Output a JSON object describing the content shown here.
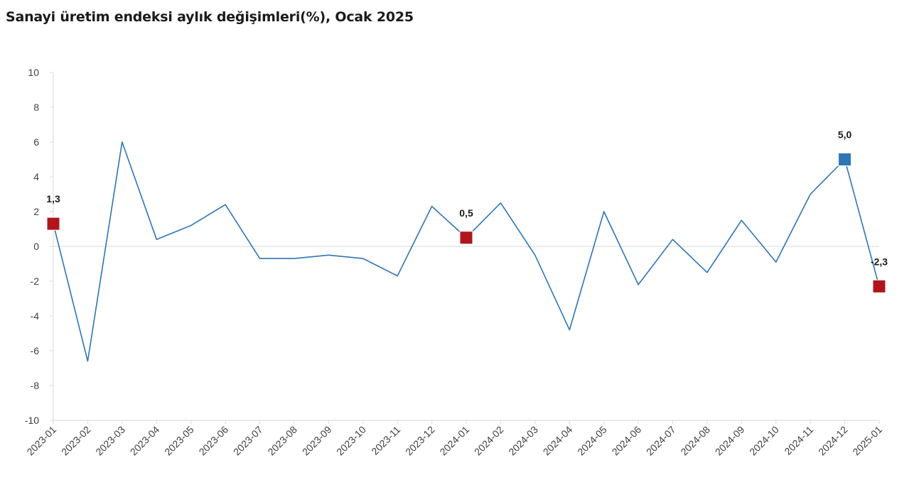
{
  "chart_data": {
    "type": "line",
    "title": "Sanayi üretim endeksi aylık değişimleri(%), Ocak 2025",
    "xlabel": "",
    "ylabel": "",
    "ylim": [
      -10,
      10
    ],
    "yticks": [
      10,
      8,
      6,
      4,
      2,
      0,
      -2,
      -4,
      -6,
      -8,
      -10
    ],
    "grid": false,
    "legend": "none",
    "categories": [
      "2023-01",
      "2023-02",
      "2023-03",
      "2023-04",
      "2023-05",
      "2023-06",
      "2023-07",
      "2023-08",
      "2023-09",
      "2023-10",
      "2023-11",
      "2023-12",
      "2024-01",
      "2024-02",
      "2024-03",
      "2024-04",
      "2024-05",
      "2024-06",
      "2024-07",
      "2024-08",
      "2024-09",
      "2024-10",
      "2024-11",
      "2024-12",
      "2025-01"
    ],
    "series": [
      {
        "values": [
          1.3,
          -6.6,
          6.0,
          0.4,
          1.2,
          2.4,
          -0.7,
          -0.7,
          -0.5,
          -0.7,
          -1.7,
          2.3,
          0.5,
          2.5,
          -0.5,
          -4.8,
          2.0,
          -2.2,
          0.4,
          -1.5,
          1.5,
          -0.9,
          3.0,
          5.0,
          -2.3
        ],
        "color": "#2e75b6"
      }
    ],
    "highlights": [
      {
        "category": "2023-01",
        "value": 1.3,
        "label": "1,3",
        "color": "#b0151c"
      },
      {
        "category": "2024-01",
        "value": 0.5,
        "label": "0,5",
        "color": "#b0151c"
      },
      {
        "category": "2024-12",
        "value": 5.0,
        "label": "5,0",
        "color": "#2e75b6"
      },
      {
        "category": "2025-01",
        "value": -2.3,
        "label": "-2,3",
        "color": "#b0151c"
      }
    ]
  }
}
